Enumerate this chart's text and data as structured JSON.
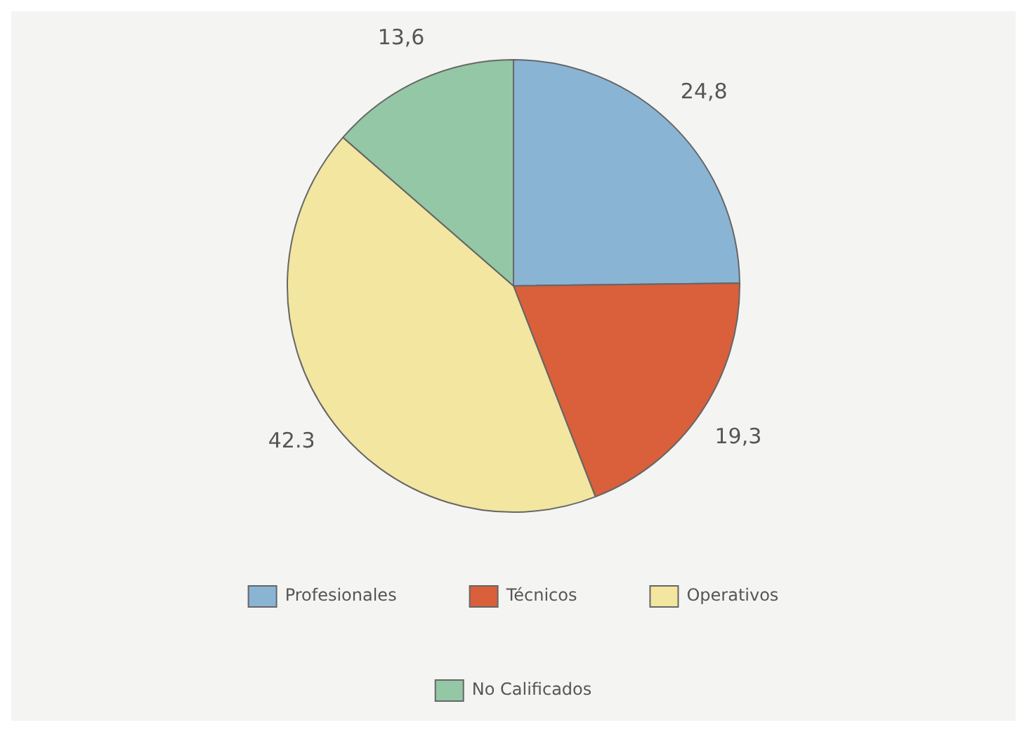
{
  "chart_data": {
    "type": "pie",
    "categories": [
      "Profesionales",
      "Técnicos",
      "Operativos",
      "No Calificados"
    ],
    "values": [
      24.8,
      19.3,
      42.3,
      13.6
    ],
    "value_labels": [
      "24,8",
      "19,3",
      "42.3",
      "13,6"
    ],
    "colors": [
      "#8ab4d4",
      "#d9603b",
      "#f2e6a0",
      "#93c7a6"
    ],
    "legend": "bottom"
  }
}
